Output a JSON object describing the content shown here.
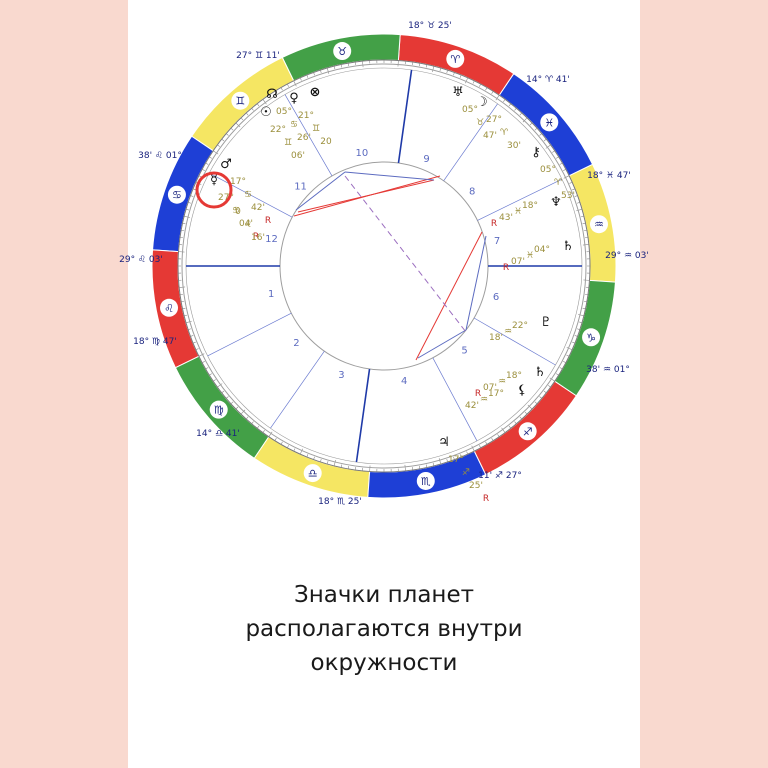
{
  "caption": {
    "line1": "Значки планет",
    "line2": "располагаются внутри",
    "line3": "окружности"
  },
  "colors": {
    "fire": "#e53935",
    "earth": "#43a047",
    "air": "#f5e663",
    "water": "#1e3fd6",
    "glyph": "#1a237e",
    "degree": "#9b8f3c",
    "house_line": "#1f3aa8",
    "highlight": "#e53935"
  },
  "signs": [
    {
      "glyph": "♒",
      "start": 0
    },
    {
      "glyph": "♓",
      "start": 30
    },
    {
      "glyph": "♈",
      "start": 60
    },
    {
      "glyph": "♉",
      "start": 90
    },
    {
      "glyph": "♊",
      "start": 120
    },
    {
      "glyph": "♋",
      "start": 150
    },
    {
      "glyph": "♌",
      "start": 180
    },
    {
      "glyph": "♍",
      "start": 210
    },
    {
      "glyph": "♎",
      "start": 240
    },
    {
      "glyph": "♏",
      "start": 270
    },
    {
      "glyph": "♐",
      "start": 300
    },
    {
      "glyph": "♑",
      "start": 330
    }
  ],
  "cusp_labels": [
    {
      "deg": "18°",
      "sign": "♉",
      "min": "25'"
    },
    {
      "deg": "14°",
      "sign": "♈",
      "min": "41'"
    },
    {
      "deg": "18°",
      "sign": "♓",
      "min": "47'"
    },
    {
      "deg": "29°",
      "sign": "♒",
      "min": "03'"
    },
    {
      "deg": "38'",
      "sign": "♒",
      "min": "01°"
    },
    {
      "deg": "11'",
      "sign": "♐",
      "min": "27°"
    },
    {
      "deg": "18°",
      "sign": "♏",
      "min": "25'"
    },
    {
      "deg": "14°",
      "sign": "♎",
      "min": "41'"
    },
    {
      "deg": "18°",
      "sign": "♍",
      "min": "47'"
    },
    {
      "deg": "29°",
      "sign": "♌",
      "min": "03'"
    },
    {
      "deg": "38'",
      "sign": "♌",
      "min": "01°"
    },
    {
      "deg": "27°",
      "sign": "♊",
      "min": "11'"
    }
  ],
  "houses": [
    "1",
    "2",
    "3",
    "4",
    "5",
    "6",
    "7",
    "8",
    "9",
    "10",
    "11",
    "12"
  ],
  "planets": [
    {
      "name": "north-node",
      "glyph": "☊",
      "lines": [
        "05°",
        "♋",
        "26'"
      ]
    },
    {
      "name": "sun",
      "glyph": "☉",
      "lines": [
        "22°",
        "♊",
        "06'"
      ]
    },
    {
      "name": "venus",
      "glyph": "♀",
      "lines": [
        "21°",
        "♊",
        "20"
      ]
    },
    {
      "name": "fortune",
      "glyph": "⊗",
      "lines": []
    },
    {
      "name": "mars",
      "glyph": "♂",
      "lines": [
        "17°",
        "♋",
        "42'",
        "R"
      ]
    },
    {
      "name": "mercury",
      "glyph": "☿",
      "lines": [
        "27°",
        "♋",
        "04'",
        "R"
      ]
    },
    {
      "name": "extra-point",
      "glyph": "",
      "lines": [
        "0",
        "♌",
        "16'"
      ]
    },
    {
      "name": "uranus",
      "glyph": "♅",
      "lines": [
        "05°",
        "♉",
        "47'"
      ]
    },
    {
      "name": "moon",
      "glyph": "☽",
      "lines": [
        "27°",
        "♈",
        "30'"
      ]
    },
    {
      "name": "chiron",
      "glyph": "⚷",
      "lines": [
        "05°",
        "♈",
        "53'"
      ]
    },
    {
      "name": "neptune",
      "glyph": "♆",
      "lines": [
        "18°",
        "♓",
        "43'",
        "R"
      ]
    },
    {
      "name": "saturn-point",
      "glyph": "♄",
      "lines": [
        "04°",
        "♓",
        "07'",
        "R"
      ]
    },
    {
      "name": "pluto",
      "glyph": "♇",
      "lines": [
        "22°",
        "♒",
        "18'"
      ]
    },
    {
      "name": "saturn",
      "glyph": "♄",
      "lines": [
        "18°",
        "♒",
        "07'",
        "R"
      ]
    },
    {
      "name": "lilith",
      "glyph": "⚸",
      "lines": [
        "17°",
        "♒",
        "42'"
      ]
    },
    {
      "name": "jupiter",
      "glyph": "♃",
      "lines": [
        "17°",
        "♐",
        "25'",
        "R"
      ]
    }
  ]
}
